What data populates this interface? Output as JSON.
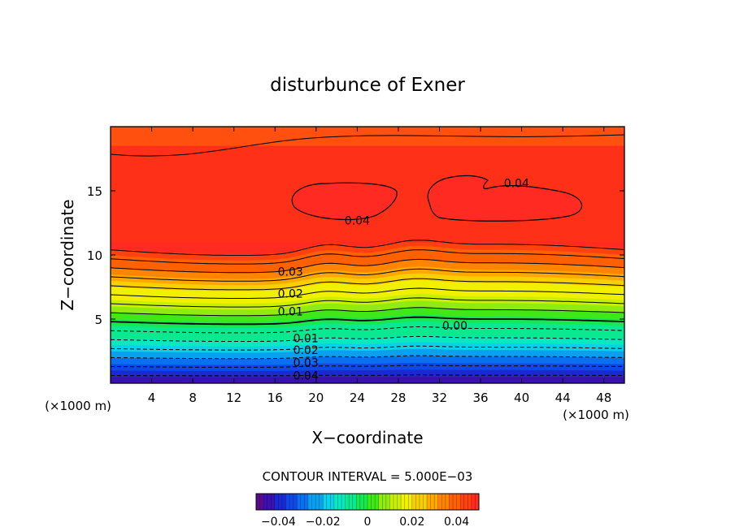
{
  "chart_data": {
    "type": "heatmap",
    "title": "disturbunce of Exner",
    "xlabel": "X−coordinate",
    "ylabel": "Z−coordinate",
    "x_unit": "(×1000 m)",
    "y_unit": "(×1000 m)",
    "xlim": [
      0,
      50
    ],
    "ylim": [
      0,
      20
    ],
    "x_ticks": [
      4,
      8,
      12,
      16,
      20,
      24,
      28,
      32,
      36,
      40,
      44,
      48
    ],
    "x_tick_labels": [
      "4",
      "8",
      "12",
      "16",
      "20",
      "24",
      "28",
      "32",
      "36",
      "40",
      "44",
      "48"
    ],
    "y_ticks": [
      5,
      10,
      15
    ],
    "y_tick_labels": [
      "5",
      "10",
      "15"
    ],
    "contour_interval_text": "CONTOUR INTERVAL = 5.000E−03",
    "contour_labels": [
      {
        "text": "0.04",
        "x": 24,
        "y": 12.7
      },
      {
        "text": "0.04",
        "x": 39.5,
        "y": 15.6
      },
      {
        "text": "0.03",
        "x": 17.5,
        "y": 8.7
      },
      {
        "text": "0.02",
        "x": 17.5,
        "y": 7.0
      },
      {
        "text": "0.01",
        "x": 17.5,
        "y": 5.6
      },
      {
        "text": "0.00",
        "x": 33.5,
        "y": 4.5
      },
      {
        "text": "0.01",
        "x": 19,
        "y": 3.5
      },
      {
        "text": "0.02",
        "x": 19,
        "y": 2.6
      },
      {
        "text": "0.03",
        "x": 19,
        "y": 1.6
      },
      {
        "text": "0.04",
        "x": 19,
        "y": 0.6
      }
    ],
    "colorbar": {
      "range": [
        -0.05,
        0.05
      ],
      "tick_labels": [
        "−0.04",
        "−0.02",
        "0",
        "0.02",
        "0.04"
      ],
      "tick_values": [
        -0.04,
        -0.02,
        0,
        0.02,
        0.04
      ]
    }
  }
}
